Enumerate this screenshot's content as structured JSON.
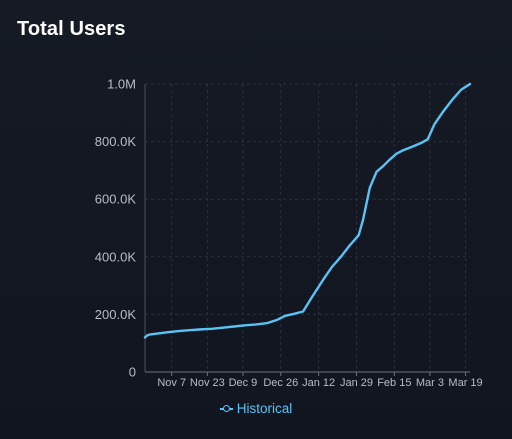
{
  "header": {
    "title": "Total Users"
  },
  "colors": {
    "background": "#131722",
    "line": "#59c3f5",
    "grid": "#2a303c",
    "axis_text": "#b8bcc6"
  },
  "chart_data": {
    "type": "line",
    "title": "Total Users",
    "xlabel": "",
    "ylabel": "",
    "grid": true,
    "legend": "bottom-center",
    "ylim": [
      0,
      1000000
    ],
    "y_ticks": [
      {
        "value": 0,
        "label": "0"
      },
      {
        "value": 200000,
        "label": "200.0K"
      },
      {
        "value": 400000,
        "label": "400.0K"
      },
      {
        "value": 600000,
        "label": "600.0K"
      },
      {
        "value": 800000,
        "label": "800.0K"
      },
      {
        "value": 1000000,
        "label": "1.0M"
      }
    ],
    "xlim": [
      "2022-10-26",
      "2023-03-21"
    ],
    "x_ticks": [
      {
        "value": "2022-11-07",
        "label": "Nov 7"
      },
      {
        "value": "2022-11-23",
        "label": "Nov 23"
      },
      {
        "value": "2022-12-09",
        "label": "Dec 9"
      },
      {
        "value": "2022-12-26",
        "label": "Dec 26"
      },
      {
        "value": "2023-01-12",
        "label": "Jan 12"
      },
      {
        "value": "2023-01-29",
        "label": "Jan 29"
      },
      {
        "value": "2023-02-15",
        "label": "Feb 15"
      },
      {
        "value": "2023-03-03",
        "label": "Mar 3"
      },
      {
        "value": "2023-03-19",
        "label": "Mar 19"
      }
    ],
    "series": [
      {
        "name": "Historical",
        "points": [
          {
            "x": "2022-10-26",
            "y": 120000
          },
          {
            "x": "2022-10-27",
            "y": 127000
          },
          {
            "x": "2022-10-28",
            "y": 130000
          },
          {
            "x": "2022-11-01",
            "y": 134000
          },
          {
            "x": "2022-11-05",
            "y": 138000
          },
          {
            "x": "2022-11-10",
            "y": 142000
          },
          {
            "x": "2022-11-15",
            "y": 145000
          },
          {
            "x": "2022-11-20",
            "y": 148000
          },
          {
            "x": "2022-11-25",
            "y": 150000
          },
          {
            "x": "2022-11-30",
            "y": 154000
          },
          {
            "x": "2022-12-05",
            "y": 158000
          },
          {
            "x": "2022-12-10",
            "y": 162000
          },
          {
            "x": "2022-12-15",
            "y": 165000
          },
          {
            "x": "2022-12-20",
            "y": 170000
          },
          {
            "x": "2022-12-24",
            "y": 180000
          },
          {
            "x": "2022-12-28",
            "y": 195000
          },
          {
            "x": "2023-01-01",
            "y": 202000
          },
          {
            "x": "2023-01-05",
            "y": 210000
          },
          {
            "x": "2023-01-09",
            "y": 260000
          },
          {
            "x": "2023-01-14",
            "y": 320000
          },
          {
            "x": "2023-01-18",
            "y": 365000
          },
          {
            "x": "2023-01-22",
            "y": 400000
          },
          {
            "x": "2023-01-26",
            "y": 440000
          },
          {
            "x": "2023-01-30",
            "y": 475000
          },
          {
            "x": "2023-02-01",
            "y": 530000
          },
          {
            "x": "2023-02-04",
            "y": 640000
          },
          {
            "x": "2023-02-07",
            "y": 695000
          },
          {
            "x": "2023-02-10",
            "y": 715000
          },
          {
            "x": "2023-02-13",
            "y": 738000
          },
          {
            "x": "2023-02-16",
            "y": 758000
          },
          {
            "x": "2023-02-19",
            "y": 770000
          },
          {
            "x": "2023-02-23",
            "y": 782000
          },
          {
            "x": "2023-02-27",
            "y": 795000
          },
          {
            "x": "2023-03-02",
            "y": 808000
          },
          {
            "x": "2023-03-05",
            "y": 860000
          },
          {
            "x": "2023-03-09",
            "y": 905000
          },
          {
            "x": "2023-03-13",
            "y": 945000
          },
          {
            "x": "2023-03-17",
            "y": 980000
          },
          {
            "x": "2023-03-21",
            "y": 1000000
          }
        ]
      }
    ]
  }
}
